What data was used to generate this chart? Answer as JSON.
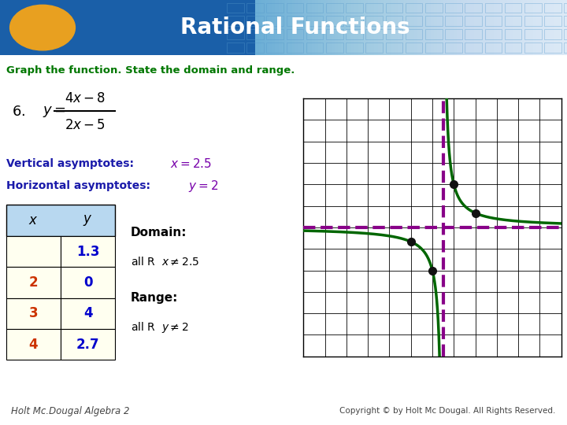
{
  "title": "Rational Functions",
  "subtitle": "Graph the function. State the domain and range.",
  "vertical_asymptote": 2.5,
  "horizontal_asymptote": 2.0,
  "graph_xlim": [
    -4,
    8
  ],
  "graph_ylim": [
    -4,
    8
  ],
  "curve_color": "#006600",
  "va_color": "#880088",
  "ha_color": "#880088",
  "xaxis_color": "#cc0000",
  "yaxis_color": "#cc0000",
  "dot_color": "#111111",
  "bg_header_left": "#1a5fa8",
  "bg_header_right": "#4a9ad4",
  "header_text_color": "#ffffff",
  "oval_color": "#e8a020",
  "subtitle_color": "#007700",
  "label_color": "#1a1aaa",
  "bg_main": "#ffffff",
  "va_label_color": "#7700aa",
  "ha_label_color": "#7700aa",
  "va_text": "Vertical asymptotes:",
  "ha_text": "Horizontal asymptotes:",
  "domain_text": "Domain:",
  "domain_value": "all R   x ≠ 2.5",
  "range_text": "Range:",
  "range_value": "all R   y ≠ 2",
  "footer_left": "Holt Mc.Dougal Algebra 2",
  "footer_right": "Copyright © by Holt Mc Dougal. All Rights Reserved.",
  "table_x_labels": [
    "",
    "2",
    "3",
    "4"
  ],
  "table_y_labels": [
    "1.3",
    "0",
    "4",
    "2.7"
  ],
  "table_header_color": "#b8d8f0",
  "table_cell_color": "#fffff0",
  "table_x_color": "#cc3300",
  "table_y_color": "#0000cc"
}
